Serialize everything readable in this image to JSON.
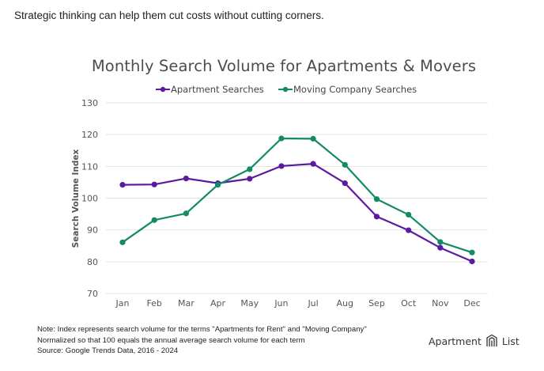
{
  "intro_text": "Strategic thinking can help them cut costs without cutting corners.",
  "chart_data": {
    "type": "line",
    "title": "Monthly Search Volume for Apartments & Movers",
    "xlabel": "",
    "ylabel": "Search Volume Index",
    "categories": [
      "Jan",
      "Feb",
      "Mar",
      "Apr",
      "May",
      "Jun",
      "Jul",
      "Aug",
      "Sep",
      "Oct",
      "Nov",
      "Dec"
    ],
    "ylim": [
      70,
      130
    ],
    "yticks": [
      70,
      80,
      90,
      100,
      110,
      120,
      130
    ],
    "grid": true,
    "legend_position": "top-center",
    "series": [
      {
        "name": "Apartment Searches",
        "color": "#5b1aa0",
        "values": [
          104.2,
          104.3,
          106.2,
          104.7,
          106.1,
          110.1,
          110.8,
          104.7,
          94.2,
          89.9,
          84.4,
          80.1
        ]
      },
      {
        "name": "Moving Company Searches",
        "color": "#128a66",
        "values": [
          86.1,
          93.1,
          95.2,
          104.2,
          109.1,
          118.8,
          118.7,
          110.5,
          99.7,
          94.8,
          86.2,
          82.9
        ]
      }
    ]
  },
  "notes": [
    "Note: Index represents search volume for the terms \"Apartments for Rent\" and \"Moving Company\"",
    "Normalized so that 100 equals the annual average search volume for each term",
    "Source: Google Trends Data, 2016 - 2024"
  ],
  "brand": {
    "word1": "Apartment",
    "word2": "List",
    "icon": "apartment-list-logo-icon"
  }
}
